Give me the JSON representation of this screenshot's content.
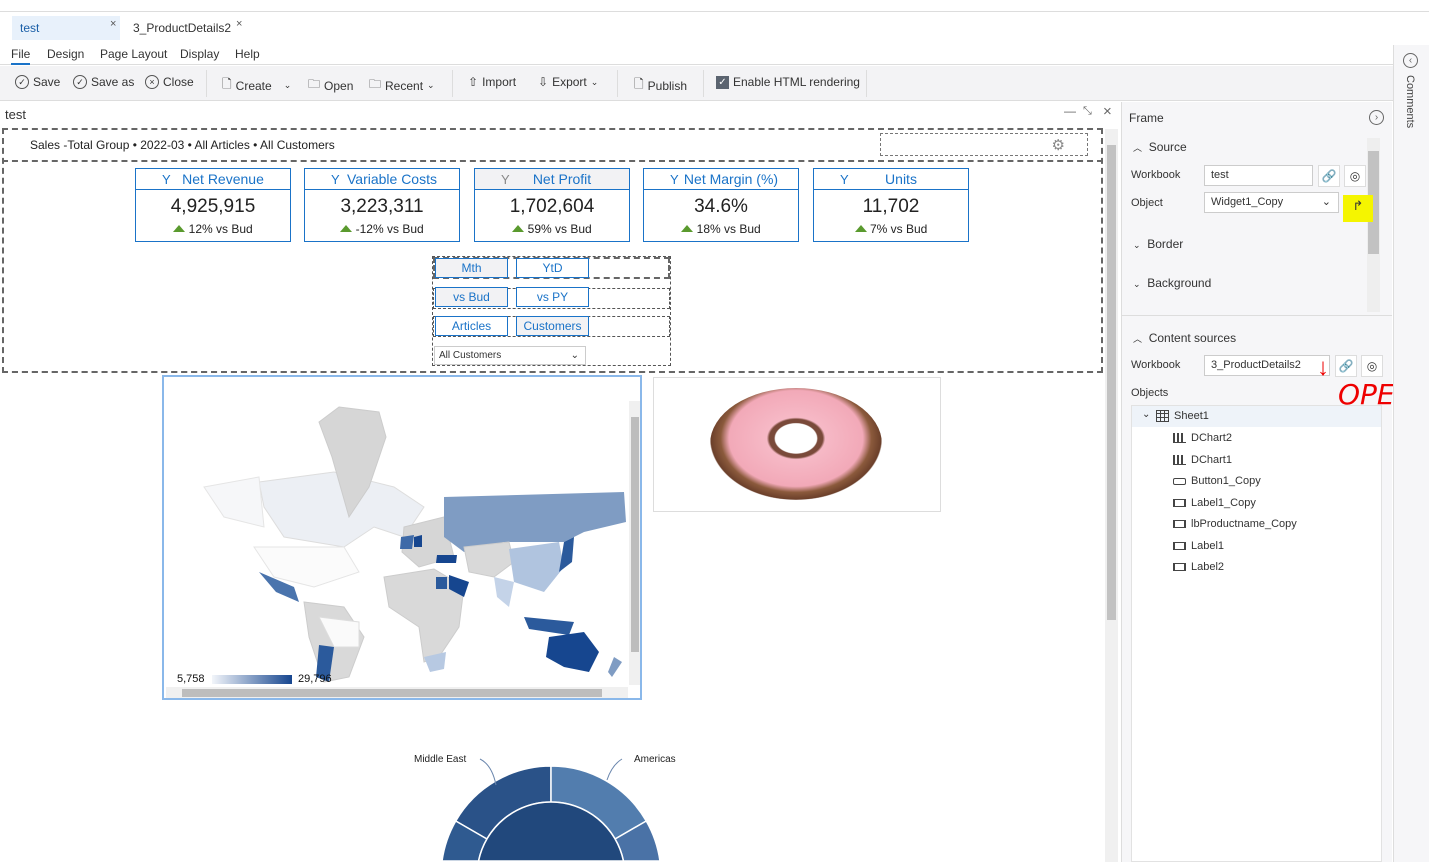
{
  "tabs": [
    {
      "label": "test",
      "active": true
    },
    {
      "label": "3_ProductDetails2",
      "active": false
    }
  ],
  "menu": [
    "File",
    "Design",
    "Page Layout",
    "Display",
    "Help"
  ],
  "toolbar": {
    "save": "Save",
    "save_as": "Save as",
    "close": "Close",
    "create": "Create",
    "open": "Open",
    "recent": "Recent",
    "import": "Import",
    "export": "Export",
    "publish": "Publish",
    "enable_html": "Enable HTML rendering",
    "enable_html_checked": true
  },
  "canvas": {
    "title": "test",
    "header": "Sales -Total Group • 2022-03 • All Articles • All Customers"
  },
  "kpis": [
    {
      "title": "Net Revenue",
      "value": "4,925,915",
      "delta": "12% vs Bud"
    },
    {
      "title": "Variable Costs",
      "value": "3,223,311",
      "delta": "-12% vs Bud"
    },
    {
      "title": "Net Profit",
      "value": "1,702,604",
      "delta": "59% vs Bud",
      "selected": true
    },
    {
      "title": "Net Margin (%)",
      "value": "34.6%",
      "delta": "18% vs Bud"
    },
    {
      "title": "Units",
      "value": "11,702",
      "delta": "7% vs Bud"
    }
  ],
  "toggles": {
    "mth": "Mth",
    "ytd": "YtD",
    "vs_bud": "vs Bud",
    "vs_py": "vs PY",
    "articles": "Articles",
    "customers": "Customers",
    "customer_select": "All Customers"
  },
  "map": {
    "legend_min": "5,758",
    "legend_max": "29,796",
    "color_low": "#f2f5fa",
    "color_high": "#16468f"
  },
  "sunburst": {
    "labels": [
      "Middle East",
      "Americas"
    ]
  },
  "panel": {
    "frame": "Frame",
    "source": "Source",
    "workbook_label": "Workbook",
    "workbook_value": "test",
    "object_label": "Object",
    "object_value": "Widget1_Copy",
    "border": "Border",
    "background": "Background",
    "content_sources": "Content sources",
    "cs_workbook_label": "Workbook",
    "cs_workbook_value": "3_ProductDetails2",
    "objects_label": "Objects",
    "annotation": "OPEn",
    "tree": {
      "root": "Sheet1",
      "items": [
        {
          "label": "DChart2",
          "icon": "chart"
        },
        {
          "label": "DChart1",
          "icon": "chart"
        },
        {
          "label": "Button1_Copy",
          "icon": "button"
        },
        {
          "label": "Label1_Copy",
          "icon": "label"
        },
        {
          "label": "lbProductname_Copy",
          "icon": "label"
        },
        {
          "label": "Label1",
          "icon": "label"
        },
        {
          "label": "Label2",
          "icon": "label"
        }
      ]
    }
  },
  "comments": "Comments"
}
